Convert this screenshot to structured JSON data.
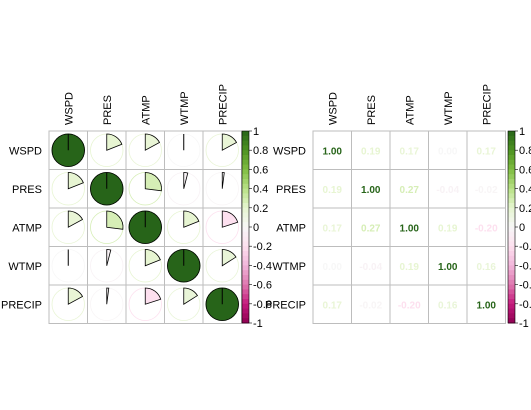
{
  "chart_data": [
    {
      "type": "heatmap",
      "style": "pie",
      "variables": [
        "WSPD",
        "PRES",
        "ATMP",
        "WTMP",
        "PRECIP"
      ],
      "matrix": [
        [
          1.0,
          0.19,
          0.17,
          0.0,
          0.17
        ],
        [
          0.19,
          1.0,
          0.27,
          -0.04,
          -0.02
        ],
        [
          0.17,
          0.27,
          1.0,
          0.19,
          -0.2
        ],
        [
          0.0,
          -0.04,
          0.19,
          1.0,
          0.16
        ],
        [
          0.17,
          -0.02,
          -0.2,
          0.16,
          1.0
        ]
      ],
      "show_values": false,
      "colorbar": {
        "range": [
          -1,
          1
        ],
        "ticks": [
          "1",
          "0.8",
          "0.6",
          "0.4",
          "0.2",
          "0",
          "-0.2",
          "-0.4",
          "-0.6",
          "-0.8",
          "-1"
        ]
      }
    },
    {
      "type": "heatmap",
      "style": "number",
      "variables": [
        "WSPD",
        "PRES",
        "ATMP",
        "WTMP",
        "PRECIP"
      ],
      "matrix": [
        [
          1.0,
          0.19,
          0.17,
          0.0,
          0.17
        ],
        [
          0.19,
          1.0,
          0.27,
          -0.04,
          -0.02
        ],
        [
          0.17,
          0.27,
          1.0,
          0.19,
          -0.2
        ],
        [
          0.0,
          -0.04,
          0.19,
          1.0,
          0.16
        ],
        [
          0.17,
          -0.02,
          -0.2,
          0.16,
          1.0
        ]
      ],
      "show_values": true,
      "colorbar": {
        "range": [
          -1,
          1
        ],
        "ticks": [
          "1",
          "0.8",
          "0.6",
          "0.4",
          "0.2",
          "0",
          "-0.2",
          "-0.4",
          "-0.6",
          "-0.8",
          "-1"
        ]
      }
    }
  ],
  "colors": {
    "scale": [
      "#8E0152",
      "#C51B7D",
      "#DE77AE",
      "#F1B6DA",
      "#FDE0EF",
      "#F7F7F7",
      "#E6F5D0",
      "#B8E186",
      "#7FBC41",
      "#4D9221",
      "#276419"
    ],
    "grid": "#bdbdbd",
    "pie_outline": "#000000"
  }
}
